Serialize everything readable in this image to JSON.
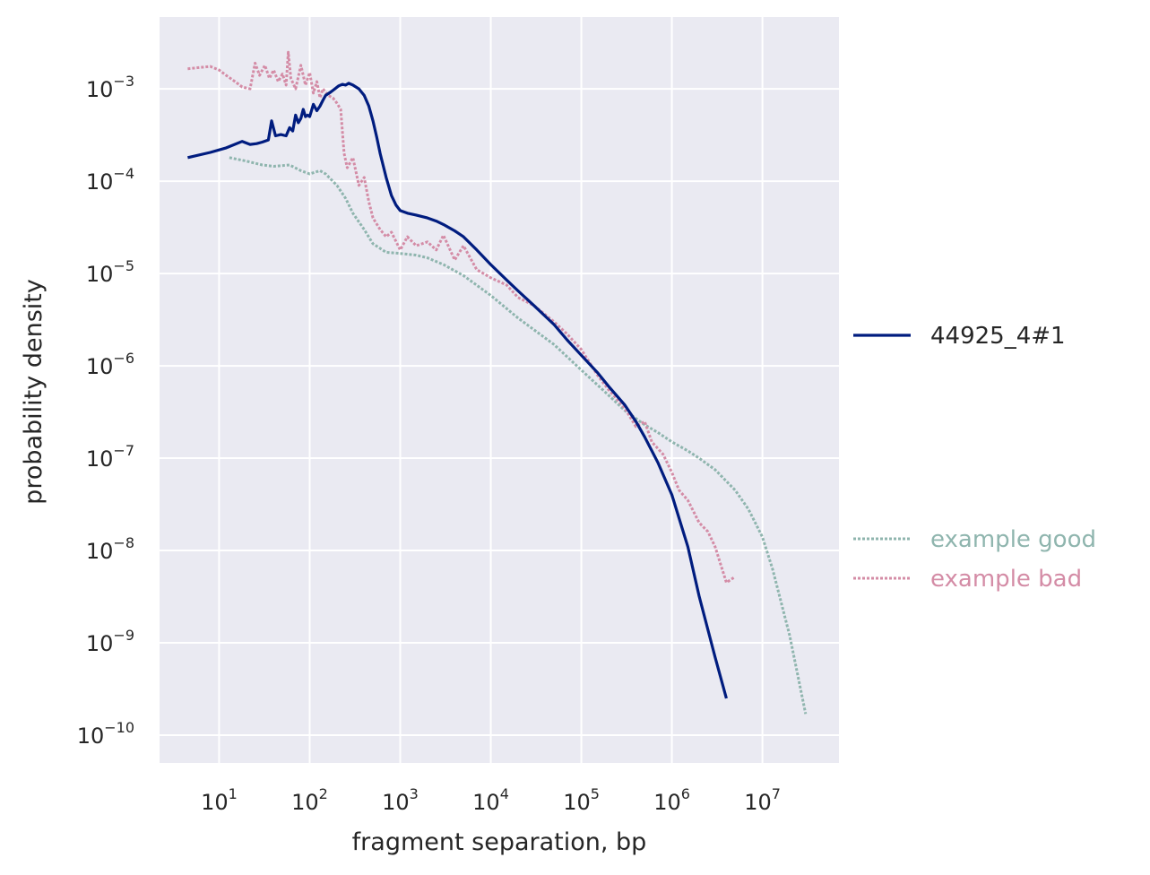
{
  "chart_data": {
    "type": "line",
    "xlabel": "fragment separation, bp",
    "ylabel": "probability density",
    "x_scale": "log",
    "y_scale": "log",
    "xlim": [
      2.2,
      70000000
    ],
    "ylim": [
      5e-11,
      0.006
    ],
    "x_ticks": [
      {
        "value": 10,
        "base": "10",
        "exp": "1"
      },
      {
        "value": 100,
        "base": "10",
        "exp": "2"
      },
      {
        "value": 1000,
        "base": "10",
        "exp": "3"
      },
      {
        "value": 10000,
        "base": "10",
        "exp": "4"
      },
      {
        "value": 100000,
        "base": "10",
        "exp": "5"
      },
      {
        "value": 1000000,
        "base": "10",
        "exp": "6"
      },
      {
        "value": 10000000,
        "base": "10",
        "exp": "7"
      }
    ],
    "y_ticks": [
      {
        "value": 0.001,
        "base": "10",
        "exp": "−3"
      },
      {
        "value": 0.0001,
        "base": "10",
        "exp": "−4"
      },
      {
        "value": 1e-05,
        "base": "10",
        "exp": "−5"
      },
      {
        "value": 1e-06,
        "base": "10",
        "exp": "−6"
      },
      {
        "value": 1e-07,
        "base": "10",
        "exp": "−7"
      },
      {
        "value": 1e-08,
        "base": "10",
        "exp": "−8"
      },
      {
        "value": 1e-09,
        "base": "10",
        "exp": "−9"
      },
      {
        "value": 1e-10,
        "base": "10",
        "exp": "−10"
      }
    ],
    "grid": true,
    "legend_placement": "right",
    "colors": {
      "plot_background": "#eaeaf2",
      "grid": "#ffffff",
      "text": "#262626"
    },
    "series": [
      {
        "name": "44925_4#1",
        "color": "#001c7f",
        "style": "solid",
        "x": [
          4.5,
          8,
          12,
          18,
          22,
          26,
          30,
          35,
          38,
          42,
          48,
          55,
          60,
          65,
          70,
          75,
          80,
          85,
          90,
          95,
          100,
          110,
          120,
          130,
          140,
          150,
          170,
          190,
          210,
          230,
          250,
          270,
          300,
          350,
          400,
          450,
          500,
          550,
          600,
          700,
          800,
          900,
          1000,
          1200,
          1500,
          2000,
          2500,
          3000,
          4000,
          5000,
          7000,
          10000,
          15000,
          20000,
          30000,
          50000,
          70000,
          100000,
          150000,
          200000,
          300000,
          400000,
          500000,
          700000,
          1000000,
          1500000,
          2000000,
          3000000,
          4000000
        ],
        "y": [
          0.00018,
          0.000205,
          0.00023,
          0.00027,
          0.00025,
          0.000255,
          0.000265,
          0.00028,
          0.00045,
          0.00031,
          0.00032,
          0.00031,
          0.00038,
          0.00035,
          0.00052,
          0.00043,
          0.00048,
          0.0006,
          0.0005,
          0.00052,
          0.0005,
          0.00068,
          0.00058,
          0.00065,
          0.00075,
          0.00085,
          0.00092,
          0.001,
          0.00108,
          0.00112,
          0.0011,
          0.00115,
          0.0011,
          0.001,
          0.00085,
          0.00065,
          0.00045,
          0.0003,
          0.0002,
          0.00011,
          7e-05,
          5.5e-05,
          4.8e-05,
          4.5e-05,
          4.3e-05,
          4e-05,
          3.7e-05,
          3.4e-05,
          2.9e-05,
          2.5e-05,
          1.8e-05,
          1.25e-05,
          8.5e-06,
          6.5e-06,
          4.5e-06,
          2.8e-06,
          1.9e-06,
          1.3e-06,
          8.5e-07,
          6e-07,
          3.8e-07,
          2.5e-07,
          1.7e-07,
          9e-08,
          4e-08,
          1.1e-08,
          3.2e-09,
          7e-10,
          2.5e-10
        ]
      },
      {
        "name": "example good",
        "color": "#8fb5ae",
        "style": "dotted",
        "x": [
          13,
          20,
          30,
          40,
          60,
          80,
          100,
          130,
          150,
          200,
          250,
          300,
          400,
          500,
          700,
          1000,
          1500,
          2000,
          3000,
          5000,
          10000,
          20000,
          50000,
          100000,
          200000,
          300000,
          500000,
          700000,
          1000000,
          1500000,
          2000000,
          3000000,
          5000000,
          7000000,
          10000000,
          13000000,
          20000000,
          30000000
        ],
        "y": [
          0.00018,
          0.000165,
          0.00015,
          0.000145,
          0.00015,
          0.00013,
          0.00012,
          0.00013,
          0.00012,
          9e-05,
          6.5e-05,
          4.5e-05,
          3e-05,
          2.1e-05,
          1.7e-05,
          1.65e-05,
          1.58e-05,
          1.48e-05,
          1.25e-05,
          9.5e-06,
          5.8e-06,
          3.3e-06,
          1.7e-06,
          9e-07,
          4.8e-07,
          3.3e-07,
          2.3e-07,
          1.9e-07,
          1.5e-07,
          1.2e-07,
          1e-07,
          7.5e-08,
          4.5e-08,
          2.8e-08,
          1.4e-08,
          6.2e-09,
          1.2e-09,
          1.7e-10
        ]
      },
      {
        "name": "example bad",
        "color": "#d48ca6",
        "style": "dotted",
        "x": [
          4.5,
          6,
          8,
          10,
          12,
          15,
          18,
          22,
          25,
          28,
          32,
          36,
          40,
          45,
          50,
          55,
          58,
          62,
          70,
          80,
          90,
          100,
          110,
          120,
          130,
          140,
          160,
          180,
          200,
          220,
          240,
          260,
          300,
          350,
          400,
          450,
          500,
          600,
          700,
          800,
          1000,
          1200,
          1500,
          2000,
          2500,
          3000,
          4000,
          5000,
          7000,
          10000,
          15000,
          20000,
          30000,
          50000,
          70000,
          100000,
          150000,
          200000,
          300000,
          400000,
          500000,
          600000,
          800000,
          1000000,
          1200000,
          1500000,
          2000000,
          2500000,
          3000000,
          4000000,
          5000000
        ],
        "y": [
          0.00165,
          0.0017,
          0.00175,
          0.0016,
          0.0014,
          0.0012,
          0.00105,
          0.001,
          0.0019,
          0.0014,
          0.0018,
          0.0013,
          0.0016,
          0.0012,
          0.00145,
          0.0011,
          0.0025,
          0.0013,
          0.001,
          0.0018,
          0.0011,
          0.0015,
          0.0009,
          0.0012,
          0.0008,
          0.001,
          0.00085,
          0.0008,
          0.0007,
          0.0006,
          0.0002,
          0.00014,
          0.00018,
          9e-05,
          0.00011,
          6e-05,
          4e-05,
          3e-05,
          2.5e-05,
          2.8e-05,
          1.8e-05,
          2.5e-05,
          2e-05,
          2.2e-05,
          1.8e-05,
          2.6e-05,
          1.4e-05,
          2e-05,
          1.1e-05,
          9e-06,
          7.5e-06,
          5.5e-06,
          4.5e-06,
          3e-06,
          2.2e-06,
          1.5e-06,
          8e-07,
          5.5e-07,
          3.5e-07,
          2.2e-07,
          2.5e-07,
          1.5e-07,
          1.1e-07,
          7e-08,
          4.5e-08,
          3.5e-08,
          2e-08,
          1.6e-08,
          1.1e-08,
          4.5e-09,
          5.2e-09
        ]
      }
    ]
  }
}
